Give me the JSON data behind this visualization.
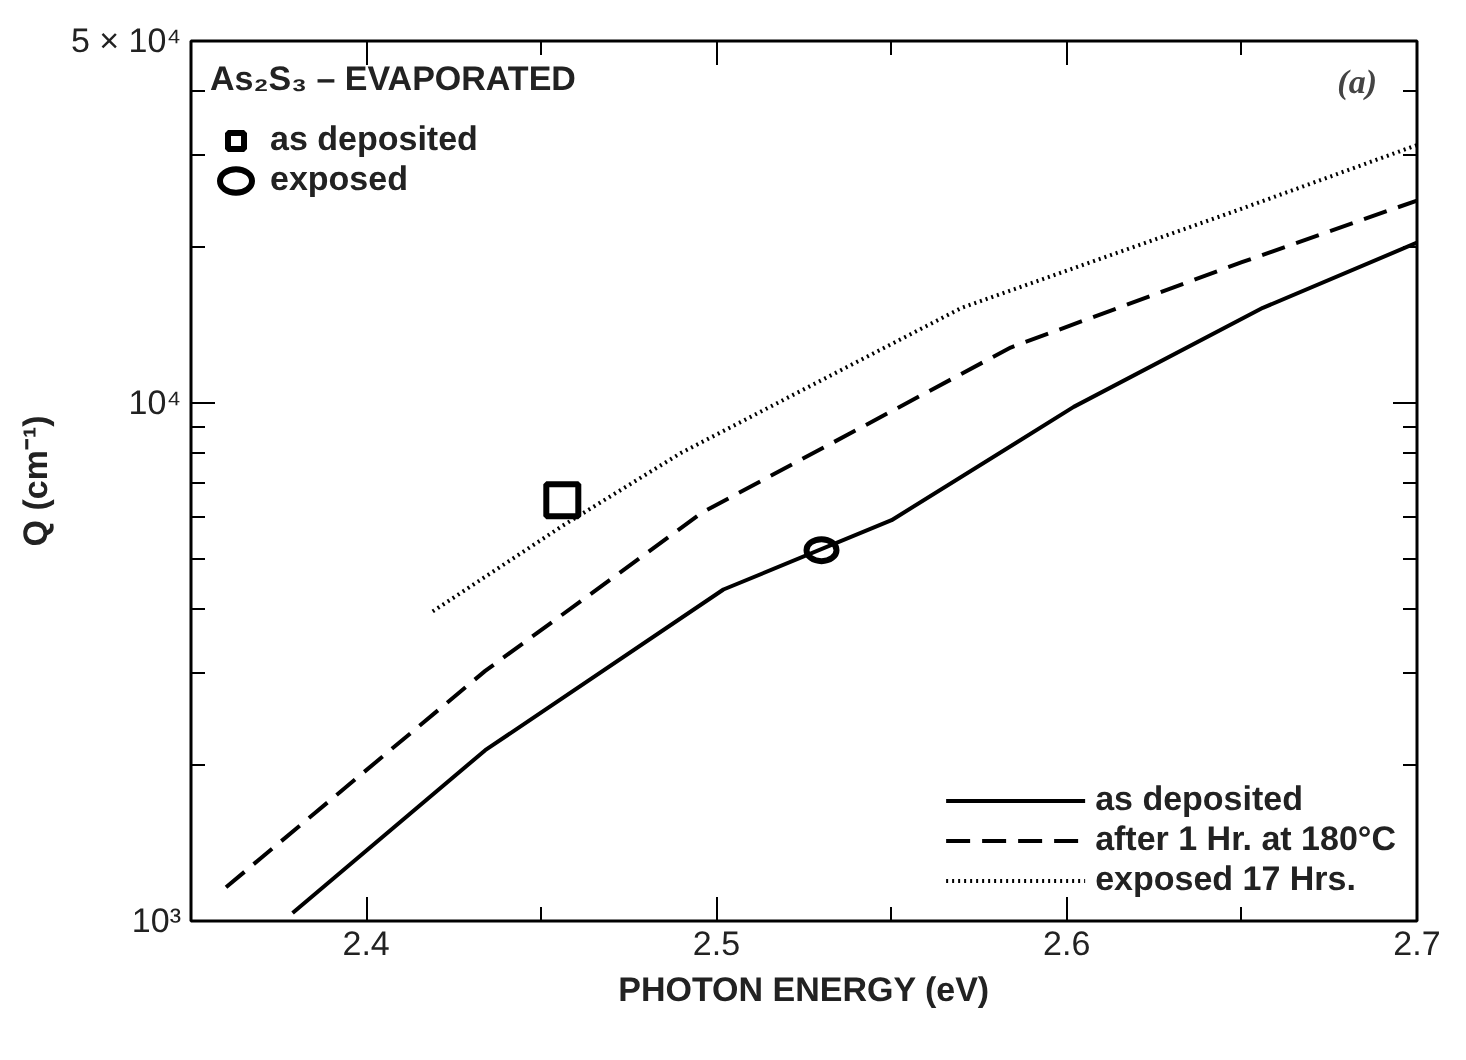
{
  "chart_data": {
    "type": "line",
    "xlabel": "PHOTON ENERGY (eV)",
    "ylabel": "Q (cm⁻¹)",
    "legend_title": "As₂S₃ – EVAPORATED",
    "annotations": [
      "(a)"
    ],
    "log": "y",
    "grid": false,
    "legend": "bottom right",
    "xlim": [
      2.35,
      2.7
    ],
    "ylim": [
      1000,
      50000
    ],
    "xticks": [
      2.4,
      {
        "value": 2.45,
        "label": null
      },
      2.5,
      {
        "value": 2.55,
        "label": null
      },
      2.6,
      {
        "value": 2.65,
        "label": null
      },
      2.7
    ],
    "yticks": [
      {
        "value": 1000,
        "label": "10³"
      },
      {
        "value": 2000,
        "label": null
      },
      {
        "value": 3000,
        "label": null
      },
      {
        "value": 4000,
        "label": null
      },
      {
        "value": 5000,
        "label": null
      },
      {
        "value": 6000,
        "label": null
      },
      {
        "value": 7000,
        "label": null
      },
      {
        "value": 8000,
        "label": null
      },
      {
        "value": 9000,
        "label": null
      },
      {
        "value": 10000,
        "label": "10⁴"
      },
      {
        "value": 20000,
        "label": null
      },
      {
        "value": 30000,
        "label": null
      },
      {
        "value": 40000,
        "label": null
      },
      {
        "value": 50000,
        "label": "5 × 10⁴"
      }
    ],
    "series": [
      {
        "name": "as deposited",
        "line_style": "solid",
        "color": "#000000",
        "x": [
          2.379,
          2.434,
          2.502,
          2.55,
          2.602,
          2.656,
          2.7
        ],
        "values": [
          1036,
          2137,
          4365,
          5940,
          9830,
          15270,
          20400
        ]
      },
      {
        "name": "after 1 Hr. at 180°C",
        "line_style": "dashed",
        "color": "#000000",
        "x": [
          2.36,
          2.434,
          2.496,
          2.584,
          2.65,
          2.7
        ],
        "values": [
          1162,
          3040,
          6150,
          12800,
          18700,
          24600
        ]
      },
      {
        "name": "exposed 17 Hrs.",
        "line_style": "dotted",
        "color": "#000000",
        "x": [
          2.419,
          2.456,
          2.49,
          2.57,
          2.65,
          2.7
        ],
        "values": [
          3960,
          5790,
          8020,
          15270,
          23730,
          31480
        ]
      },
      {
        "name": "as deposited",
        "type": "scatter",
        "marker": "square",
        "color": "#000000",
        "x": [
          2.456
        ],
        "values": [
          6490
        ]
      },
      {
        "name": "exposed",
        "type": "scatter",
        "marker": "circle",
        "color": "#000000",
        "x": [
          2.53
        ],
        "values": [
          5200
        ]
      }
    ]
  }
}
